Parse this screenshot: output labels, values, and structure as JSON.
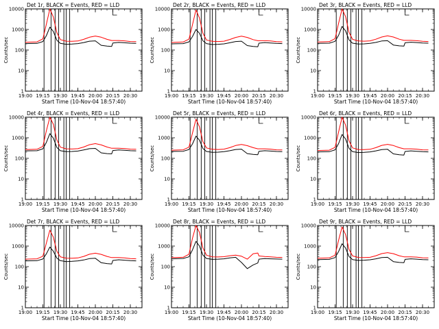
{
  "figure": {
    "xlabel": "Start Time (10-Nov-04 18:57:40)",
    "ylabel": "Counts/sec",
    "black_label": "Events",
    "red_label": "LLD",
    "colors": {
      "events": "#000000",
      "lld": "#ff0000",
      "axes": "#000000"
    }
  },
  "chart_data": [
    {
      "type": "line",
      "title": "Det 1r, BLACK = Events, RED = LLD",
      "xlabel": "Start Time (10-Nov-04 18:57:40)",
      "ylabel": "Counts/sec",
      "x_ticks": [
        "19:00",
        "19:15",
        "19:30",
        "19:45",
        "20:00",
        "20:15",
        "20:30"
      ],
      "y_ticks": [
        "1",
        "10",
        "100",
        "1000",
        "10000"
      ],
      "ylim": [
        1,
        10000
      ],
      "yscale": "log",
      "x": [
        "19:00",
        "19:10",
        "19:15",
        "19:18",
        "19:21",
        "19:24",
        "19:27",
        "19:30",
        "19:35",
        "19:40",
        "19:45",
        "19:50",
        "19:55",
        "20:00",
        "20:05",
        "20:10",
        "20:14",
        "20:15",
        "20:20",
        "20:25",
        "20:30",
        "20:35"
      ],
      "series": [
        {
          "name": "Events",
          "color": "#000000",
          "values": [
            205,
            210,
            260,
            500,
            1300,
            800,
            300,
            210,
            190,
            195,
            205,
            230,
            270,
            280,
            170,
            155,
            150,
            220,
            235,
            225,
            215,
            210
          ]
        },
        {
          "name": "LLD",
          "color": "#ff0000",
          "values": [
            240,
            250,
            350,
            1800,
            10000,
            4000,
            700,
            320,
            270,
            265,
            275,
            330,
            420,
            480,
            420,
            330,
            290,
            290,
            290,
            280,
            260,
            255
          ]
        }
      ],
      "vlines": [
        "19:16",
        "19:22",
        "19:25.5",
        "19:28.5",
        "19:33",
        "19:35",
        "19:38"
      ],
      "grid": false,
      "legend": "none"
    },
    {
      "type": "line",
      "title": "Det 2r, BLACK = Events, RED = LLD",
      "xlabel": "Start Time (10-Nov-04 18:57:40)",
      "ylabel": "Counts/sec",
      "x_ticks": [
        "19:00",
        "19:15",
        "19:30",
        "19:45",
        "20:00",
        "20:15",
        "20:30"
      ],
      "y_ticks": [
        "1",
        "10",
        "100",
        "1000",
        "10000"
      ],
      "ylim": [
        1,
        10000
      ],
      "yscale": "log",
      "x": [
        "19:00",
        "19:10",
        "19:15",
        "19:18",
        "19:21",
        "19:24",
        "19:27",
        "19:30",
        "19:35",
        "19:40",
        "19:45",
        "19:50",
        "19:55",
        "20:00",
        "20:05",
        "20:10",
        "20:14",
        "20:15",
        "20:20",
        "20:25",
        "20:30",
        "20:35"
      ],
      "series": [
        {
          "name": "Events",
          "color": "#000000",
          "values": [
            200,
            205,
            250,
            450,
            1000,
            650,
            280,
            205,
            185,
            190,
            200,
            225,
            260,
            270,
            165,
            150,
            145,
            215,
            230,
            220,
            210,
            205
          ]
        },
        {
          "name": "LLD",
          "color": "#ff0000",
          "values": [
            235,
            245,
            340,
            1700,
            9000,
            3600,
            650,
            310,
            265,
            260,
            270,
            325,
            410,
            470,
            410,
            320,
            285,
            285,
            285,
            275,
            255,
            250
          ]
        }
      ],
      "vlines": [
        "19:16",
        "19:22",
        "19:25.5",
        "19:28.5",
        "19:33",
        "19:35",
        "19:38"
      ],
      "grid": false,
      "legend": "none"
    },
    {
      "type": "line",
      "title": "Det 3r, BLACK = Events, RED = LLD",
      "xlabel": "Start Time (10-Nov-04 18:57:40)",
      "ylabel": "Counts/sec",
      "x_ticks": [
        "19:00",
        "19:15",
        "19:30",
        "19:45",
        "20:00",
        "20:15",
        "20:30"
      ],
      "y_ticks": [
        "1",
        "10",
        "100",
        "1000",
        "10000"
      ],
      "ylim": [
        1,
        10000
      ],
      "yscale": "log",
      "x": [
        "19:00",
        "19:10",
        "19:15",
        "19:18",
        "19:21",
        "19:24",
        "19:27",
        "19:30",
        "19:35",
        "19:40",
        "19:45",
        "19:50",
        "19:55",
        "20:00",
        "20:05",
        "20:10",
        "20:14",
        "20:15",
        "20:20",
        "20:25",
        "20:30",
        "20:35"
      ],
      "series": [
        {
          "name": "Events",
          "color": "#000000",
          "values": [
            210,
            215,
            265,
            520,
            1400,
            850,
            310,
            215,
            195,
            200,
            210,
            235,
            275,
            285,
            175,
            160,
            155,
            225,
            240,
            230,
            220,
            215
          ]
        },
        {
          "name": "LLD",
          "color": "#ff0000",
          "values": [
            245,
            255,
            360,
            2000,
            10000,
            4200,
            720,
            330,
            275,
            270,
            280,
            335,
            430,
            490,
            430,
            335,
            295,
            295,
            295,
            285,
            265,
            260
          ]
        }
      ],
      "vlines": [
        "19:16",
        "19:22",
        "19:25.5",
        "19:28.5",
        "19:33",
        "19:35",
        "19:38"
      ],
      "grid": false,
      "legend": "none"
    },
    {
      "type": "line",
      "title": "Det 4r, BLACK = Events, RED = LLD",
      "xlabel": "Start Time (10-Nov-04 18:57:40)",
      "ylabel": "Counts/sec",
      "x_ticks": [
        "19:00",
        "19:15",
        "19:30",
        "19:45",
        "20:00",
        "20:15",
        "20:30"
      ],
      "y_ticks": [
        "1",
        "10",
        "100",
        "1000",
        "10000"
      ],
      "ylim": [
        1,
        10000
      ],
      "yscale": "log",
      "x": [
        "19:00",
        "19:10",
        "19:15",
        "19:18",
        "19:21",
        "19:24",
        "19:27",
        "19:30",
        "19:35",
        "19:40",
        "19:45",
        "19:50",
        "19:55",
        "20:00",
        "20:05",
        "20:10",
        "20:14",
        "20:15",
        "20:20",
        "20:25",
        "20:30",
        "20:35"
      ],
      "series": [
        {
          "name": "Events",
          "color": "#000000",
          "values": [
            230,
            235,
            290,
            600,
            1600,
            950,
            340,
            235,
            210,
            215,
            225,
            255,
            295,
            305,
            185,
            170,
            165,
            240,
            255,
            245,
            235,
            230
          ]
        },
        {
          "name": "LLD",
          "color": "#ff0000",
          "values": [
            265,
            275,
            380,
            2200,
            10000,
            4500,
            780,
            350,
            290,
            285,
            295,
            355,
            460,
            520,
            450,
            355,
            310,
            310,
            310,
            300,
            280,
            275
          ]
        }
      ],
      "vlines": [
        "19:16",
        "19:22",
        "19:25.5",
        "19:28.5",
        "19:33",
        "19:35",
        "19:38"
      ],
      "grid": false,
      "legend": "none"
    },
    {
      "type": "line",
      "title": "Det 5r, BLACK = Events, RED = LLD",
      "xlabel": "Start Time (10-Nov-04 18:57:40)",
      "ylabel": "Counts/sec",
      "x_ticks": [
        "19:00",
        "19:15",
        "19:30",
        "19:45",
        "20:00",
        "20:15",
        "20:30"
      ],
      "y_ticks": [
        "1",
        "10",
        "100",
        "1000",
        "10000"
      ],
      "ylim": [
        1,
        10000
      ],
      "yscale": "log",
      "x": [
        "19:00",
        "19:10",
        "19:15",
        "19:18",
        "19:21",
        "19:24",
        "19:27",
        "19:30",
        "19:35",
        "19:40",
        "19:45",
        "19:50",
        "19:55",
        "20:00",
        "20:05",
        "20:10",
        "20:14",
        "20:15",
        "20:20",
        "20:25",
        "20:30",
        "20:35"
      ],
      "series": [
        {
          "name": "Events",
          "color": "#000000",
          "values": [
            215,
            220,
            270,
            500,
            1200,
            760,
            300,
            215,
            195,
            200,
            210,
            235,
            270,
            280,
            170,
            155,
            150,
            220,
            235,
            225,
            215,
            210
          ]
        },
        {
          "name": "LLD",
          "color": "#ff0000",
          "values": [
            250,
            260,
            350,
            1700,
            8000,
            3400,
            640,
            320,
            275,
            270,
            280,
            330,
            420,
            470,
            415,
            330,
            290,
            290,
            290,
            280,
            260,
            255
          ]
        }
      ],
      "vlines": [
        "19:16",
        "19:22",
        "19:25.5",
        "19:28.5",
        "19:33",
        "19:35",
        "19:38"
      ],
      "grid": false,
      "legend": "none"
    },
    {
      "type": "line",
      "title": "Det 6r, BLACK = Events, RED = LLD",
      "xlabel": "Start Time (10-Nov-04 18:57:40)",
      "ylabel": "Counts/sec",
      "x_ticks": [
        "19:00",
        "19:15",
        "19:30",
        "19:45",
        "20:00",
        "20:15",
        "20:30"
      ],
      "y_ticks": [
        "1",
        "10",
        "100",
        "1000",
        "10000"
      ],
      "ylim": [
        1,
        10000
      ],
      "yscale": "log",
      "x": [
        "19:00",
        "19:10",
        "19:15",
        "19:18",
        "19:21",
        "19:24",
        "19:27",
        "19:30",
        "19:35",
        "19:40",
        "19:45",
        "19:50",
        "19:55",
        "20:00",
        "20:05",
        "20:10",
        "20:14",
        "20:15",
        "20:20",
        "20:25",
        "20:30",
        "20:35"
      ],
      "series": [
        {
          "name": "Events",
          "color": "#000000",
          "values": [
            205,
            210,
            260,
            520,
            1450,
            870,
            305,
            210,
            190,
            195,
            205,
            230,
            265,
            275,
            165,
            150,
            145,
            215,
            230,
            220,
            210,
            205
          ]
        },
        {
          "name": "LLD",
          "color": "#ff0000",
          "values": [
            240,
            250,
            345,
            1900,
            10000,
            4100,
            700,
            320,
            270,
            265,
            275,
            330,
            425,
            480,
            420,
            330,
            290,
            290,
            290,
            280,
            260,
            255
          ]
        }
      ],
      "vlines": [
        "19:16",
        "19:22",
        "19:25.5",
        "19:28.5",
        "19:33",
        "19:35",
        "19:38"
      ],
      "grid": false,
      "legend": "none"
    },
    {
      "type": "line",
      "title": "Det 7r, BLACK = Events, RED = LLD",
      "xlabel": "Start Time (10-Nov-04 18:57:40)",
      "ylabel": "Counts/sec",
      "x_ticks": [
        "19:00",
        "19:15",
        "19:30",
        "19:45",
        "20:00",
        "20:15",
        "20:30"
      ],
      "y_ticks": [
        "1",
        "10",
        "100",
        "1000",
        "10000"
      ],
      "ylim": [
        1,
        10000
      ],
      "yscale": "log",
      "x": [
        "19:00",
        "19:10",
        "19:15",
        "19:18",
        "19:21",
        "19:24",
        "19:27",
        "19:30",
        "19:35",
        "19:40",
        "19:45",
        "19:50",
        "19:55",
        "20:00",
        "20:05",
        "20:10",
        "20:14",
        "20:15",
        "20:20",
        "20:25",
        "20:30",
        "20:35"
      ],
      "series": [
        {
          "name": "Events",
          "color": "#000000",
          "values": [
            190,
            195,
            235,
            420,
            900,
            560,
            260,
            195,
            175,
            180,
            190,
            210,
            245,
            255,
            155,
            140,
            135,
            200,
            215,
            205,
            195,
            190
          ]
        },
        {
          "name": "LLD",
          "color": "#ff0000",
          "values": [
            230,
            240,
            320,
            1400,
            6000,
            2700,
            560,
            300,
            260,
            255,
            265,
            315,
            400,
            450,
            395,
            315,
            275,
            275,
            275,
            265,
            245,
            240
          ]
        }
      ],
      "vlines": [
        "19:16",
        "19:22",
        "19:25.5",
        "19:28.5",
        "19:33",
        "19:35",
        "19:38"
      ],
      "grid": false,
      "legend": "none"
    },
    {
      "type": "line",
      "title": "Det 8r, BLACK = Events, RED = LLD",
      "xlabel": "Start Time (10-Nov-04 18:57:40)",
      "ylabel": "Counts/sec",
      "x_ticks": [
        "19:00",
        "19:15",
        "19:30",
        "19:45",
        "20:00",
        "20:15",
        "20:30"
      ],
      "y_ticks": [
        "1",
        "10",
        "100",
        "1000",
        "10000"
      ],
      "ylim": [
        1,
        10000
      ],
      "yscale": "log",
      "x": [
        "19:00",
        "19:10",
        "19:15",
        "19:18",
        "19:21",
        "19:24",
        "19:27",
        "19:30",
        "19:35",
        "19:40",
        "19:45",
        "19:50",
        "19:55",
        "20:00",
        "20:05",
        "20:10",
        "20:14",
        "20:15",
        "20:20",
        "20:25",
        "20:30",
        "20:35"
      ],
      "series": [
        {
          "name": "Events",
          "color": "#000000",
          "values": [
            240,
            250,
            300,
            650,
            1700,
            1000,
            360,
            250,
            225,
            230,
            240,
            265,
            285,
            160,
            80,
            120,
            150,
            230,
            245,
            240,
            235,
            230
          ]
        },
        {
          "name": "LLD",
          "color": "#ff0000",
          "values": [
            275,
            285,
            400,
            2400,
            10000,
            4600,
            800,
            360,
            300,
            295,
            305,
            340,
            360,
            320,
            230,
            420,
            460,
            330,
            310,
            300,
            285,
            280
          ]
        }
      ],
      "vlines": [
        "19:16",
        "19:22",
        "19:25.5",
        "19:28.5",
        "19:33",
        "19:35",
        "19:38"
      ],
      "grid": false,
      "legend": "none"
    },
    {
      "type": "line",
      "title": "Det 9r, BLACK = Events, RED = LLD",
      "xlabel": "Start Time (10-Nov-04 18:57:40)",
      "ylabel": "Counts/sec",
      "x_ticks": [
        "19:00",
        "19:15",
        "19:30",
        "19:45",
        "20:00",
        "20:15",
        "20:30"
      ],
      "y_ticks": [
        "1",
        "10",
        "100",
        "1000",
        "10000"
      ],
      "ylim": [
        1,
        10000
      ],
      "yscale": "log",
      "x": [
        "19:00",
        "19:10",
        "19:15",
        "19:18",
        "19:21",
        "19:24",
        "19:27",
        "19:30",
        "19:35",
        "19:40",
        "19:45",
        "19:50",
        "19:55",
        "20:00",
        "20:05",
        "20:10",
        "20:14",
        "20:15",
        "20:20",
        "20:25",
        "20:30",
        "20:35"
      ],
      "series": [
        {
          "name": "Events",
          "color": "#000000",
          "values": [
            220,
            225,
            275,
            540,
            1300,
            800,
            310,
            220,
            200,
            205,
            215,
            240,
            275,
            285,
            175,
            160,
            155,
            225,
            240,
            230,
            220,
            215
          ]
        },
        {
          "name": "LLD",
          "color": "#ff0000",
          "values": [
            255,
            265,
            360,
            1900,
            8500,
            3600,
            680,
            330,
            280,
            275,
            285,
            340,
            430,
            480,
            425,
            340,
            300,
            300,
            300,
            290,
            270,
            265
          ]
        }
      ],
      "vlines": [
        "19:16",
        "19:22",
        "19:25.5",
        "19:28.5",
        "19:33",
        "19:35",
        "19:38"
      ],
      "grid": false,
      "legend": "none"
    }
  ]
}
